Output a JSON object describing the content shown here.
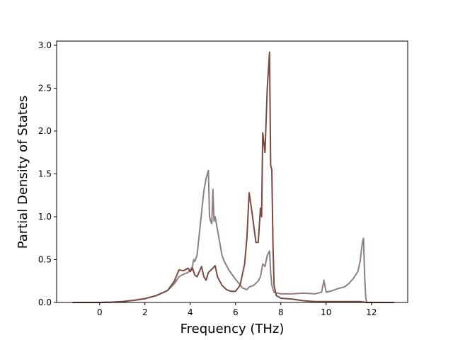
{
  "chart_data": {
    "type": "line",
    "title": "",
    "xlabel": "Frequency (THz)",
    "ylabel": "Partial Density of States",
    "xlim": [
      -1.9,
      13.6
    ],
    "ylim": [
      0.0,
      3.05
    ],
    "xticks": [
      0,
      2,
      4,
      6,
      8,
      10,
      12
    ],
    "yticks": [
      0.0,
      0.5,
      1.0,
      1.5,
      2.0,
      2.5,
      3.0
    ],
    "xtick_labels": [
      "0",
      "2",
      "4",
      "6",
      "8",
      "10",
      "12"
    ],
    "ytick_labels": [
      "0.0",
      "0.5",
      "1.0",
      "1.5",
      "2.0",
      "2.5",
      "3.0"
    ],
    "grid": false,
    "legend": "none",
    "series": [
      {
        "color": "#8c7f86",
        "points": [
          [
            -1.2,
            0
          ],
          [
            0,
            0.0
          ],
          [
            0.5,
            0.003
          ],
          [
            1,
            0.01
          ],
          [
            1.5,
            0.025
          ],
          [
            2,
            0.045
          ],
          [
            2.5,
            0.08
          ],
          [
            3,
            0.14
          ],
          [
            3.3,
            0.22
          ],
          [
            3.5,
            0.3
          ],
          [
            3.7,
            0.33
          ],
          [
            3.9,
            0.35
          ],
          [
            4.0,
            0.38
          ],
          [
            4.1,
            0.42
          ],
          [
            4.15,
            0.5
          ],
          [
            4.2,
            0.48
          ],
          [
            4.3,
            0.55
          ],
          [
            4.4,
            0.8
          ],
          [
            4.5,
            1.05
          ],
          [
            4.6,
            1.3
          ],
          [
            4.7,
            1.45
          ],
          [
            4.8,
            1.54
          ],
          [
            4.85,
            1.0
          ],
          [
            4.9,
            0.95
          ],
          [
            4.95,
            0.92
          ],
          [
            5.0,
            1.32
          ],
          [
            5.05,
            0.95
          ],
          [
            5.1,
            1.0
          ],
          [
            5.2,
            0.85
          ],
          [
            5.3,
            0.7
          ],
          [
            5.4,
            0.55
          ],
          [
            5.5,
            0.48
          ],
          [
            5.7,
            0.38
          ],
          [
            6.0,
            0.27
          ],
          [
            6.3,
            0.17
          ],
          [
            6.5,
            0.15
          ],
          [
            6.6,
            0.18
          ],
          [
            6.8,
            0.2
          ],
          [
            7.0,
            0.25
          ],
          [
            7.1,
            0.3
          ],
          [
            7.2,
            0.45
          ],
          [
            7.3,
            0.42
          ],
          [
            7.4,
            0.55
          ],
          [
            7.5,
            0.6
          ],
          [
            7.55,
            0.35
          ],
          [
            7.6,
            0.2
          ],
          [
            7.7,
            0.12
          ],
          [
            8.0,
            0.1
          ],
          [
            8.5,
            0.1
          ],
          [
            9.0,
            0.11
          ],
          [
            9.5,
            0.1
          ],
          [
            9.8,
            0.12
          ],
          [
            9.9,
            0.26
          ],
          [
            10.0,
            0.12
          ],
          [
            10.3,
            0.14
          ],
          [
            10.5,
            0.16
          ],
          [
            10.8,
            0.18
          ],
          [
            11.0,
            0.22
          ],
          [
            11.2,
            0.28
          ],
          [
            11.4,
            0.36
          ],
          [
            11.5,
            0.48
          ],
          [
            11.6,
            0.7
          ],
          [
            11.65,
            0.75
          ],
          [
            11.7,
            0.3
          ],
          [
            11.75,
            0.05
          ],
          [
            11.8,
            0
          ],
          [
            13,
            0
          ]
        ]
      },
      {
        "color": "#7a4a42",
        "points": [
          [
            -1.2,
            0
          ],
          [
            0,
            0.0
          ],
          [
            0.5,
            0.003
          ],
          [
            1,
            0.01
          ],
          [
            1.5,
            0.025
          ],
          [
            2,
            0.045
          ],
          [
            2.5,
            0.08
          ],
          [
            3,
            0.14
          ],
          [
            3.3,
            0.25
          ],
          [
            3.5,
            0.38
          ],
          [
            3.7,
            0.37
          ],
          [
            3.9,
            0.4
          ],
          [
            4.0,
            0.36
          ],
          [
            4.1,
            0.4
          ],
          [
            4.2,
            0.32
          ],
          [
            4.3,
            0.3
          ],
          [
            4.5,
            0.42
          ],
          [
            4.6,
            0.3
          ],
          [
            4.7,
            0.26
          ],
          [
            4.8,
            0.35
          ],
          [
            5.0,
            0.4
          ],
          [
            5.1,
            0.43
          ],
          [
            5.2,
            0.3
          ],
          [
            5.4,
            0.2
          ],
          [
            5.6,
            0.15
          ],
          [
            5.8,
            0.13
          ],
          [
            6.0,
            0.13
          ],
          [
            6.2,
            0.2
          ],
          [
            6.4,
            0.45
          ],
          [
            6.5,
            0.75
          ],
          [
            6.6,
            1.28
          ],
          [
            6.7,
            1.1
          ],
          [
            6.9,
            0.7
          ],
          [
            7.0,
            0.7
          ],
          [
            7.1,
            1.1
          ],
          [
            7.15,
            1.0
          ],
          [
            7.2,
            1.98
          ],
          [
            7.3,
            1.75
          ],
          [
            7.4,
            2.5
          ],
          [
            7.5,
            2.92
          ],
          [
            7.55,
            1.6
          ],
          [
            7.6,
            1.55
          ],
          [
            7.65,
            0.7
          ],
          [
            7.7,
            0.2
          ],
          [
            7.8,
            0.08
          ],
          [
            8.0,
            0.05
          ],
          [
            8.5,
            0.04
          ],
          [
            9.0,
            0.02
          ],
          [
            9.5,
            0.01
          ],
          [
            10,
            0.01
          ],
          [
            10.5,
            0.01
          ],
          [
            11,
            0.01
          ],
          [
            11.5,
            0.01
          ],
          [
            11.8,
            0
          ],
          [
            13,
            0
          ]
        ]
      }
    ]
  }
}
